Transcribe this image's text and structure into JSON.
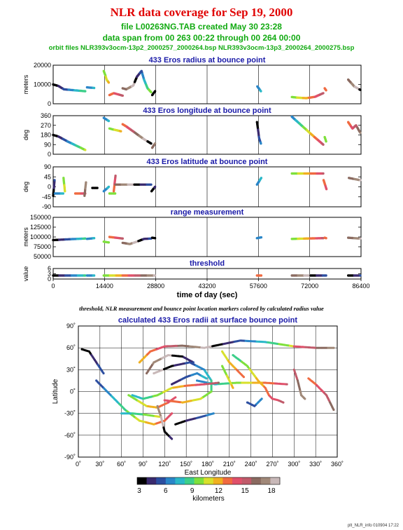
{
  "header": {
    "title": "NLR data coverage for Sep 19, 2000",
    "file_line": "file L00263NG.TAB created May 30 23:28",
    "span_line": "data span from 00 263 00:22 through 00 264 00:00",
    "orbit_line": "orbit files NLR393v3ocm-13p2_2000257_2000264.bsp NLR393v3ocm-13p3_2000264_2000275.bsp"
  },
  "caption": "threshold, NLR measurement and bounce point location markers colored by calculated radius value",
  "footer": "plt_NLR_info 010904 17:22",
  "colors": {
    "panel_title": "#1a1aa8",
    "title": "#e00000",
    "subtitle": "#11aa11",
    "colorbar": [
      "#000000",
      "#3a2a6e",
      "#2c4ea0",
      "#2a86c8",
      "#2bb8c8",
      "#3ccf8a",
      "#7ee03c",
      "#d8e02c",
      "#f0b020",
      "#f06a40",
      "#e0506a",
      "#c05a6a",
      "#8a6a60",
      "#a08878",
      "#c8b8b8"
    ]
  },
  "chart_data": [
    {
      "type": "scatter",
      "title": "433 Eros radius at bounce point",
      "ylabel": "meters",
      "ylim": [
        0,
        20000
      ],
      "yticks": [
        "0",
        "10000",
        "20000"
      ],
      "xlim": [
        0,
        86400
      ],
      "segments": [
        {
          "x": [
            0,
            1500,
            3000,
            6000,
            9000
          ],
          "y": [
            10000,
            9200,
            7500,
            7000,
            6500
          ]
        },
        {
          "x": [
            9500,
            11500
          ],
          "y": [
            8500,
            8200
          ]
        },
        {
          "x": [
            14200,
            14600,
            15000,
            15600
          ],
          "y": [
            17000,
            15000,
            12500,
            11000
          ]
        },
        {
          "x": [
            15800,
            17000,
            18000,
            19500
          ],
          "y": [
            4500,
            5500,
            5000,
            4200
          ]
        },
        {
          "x": [
            19500,
            20500,
            22500,
            23500,
            24800,
            25500,
            26500,
            27500
          ],
          "y": [
            8000,
            7500,
            9500,
            14000,
            17000,
            12500,
            8000,
            6000
          ]
        },
        {
          "x": [
            27800,
            28600
          ],
          "y": [
            4500,
            6500
          ]
        },
        {
          "x": [
            57300,
            57700,
            58300
          ],
          "y": [
            9000,
            8000,
            6500
          ]
        },
        {
          "x": [
            67000,
            68500,
            71000,
            73500,
            75800
          ],
          "y": [
            3500,
            3200,
            2900,
            3600,
            5500
          ]
        },
        {
          "x": [
            76200,
            76600
          ],
          "y": [
            8000,
            7000
          ]
        },
        {
          "x": [
            82800,
            84500,
            86200
          ],
          "y": [
            12500,
            9000,
            7200
          ]
        }
      ]
    },
    {
      "type": "scatter",
      "title": "433 Eros longitude at bounce point",
      "ylabel": "deg",
      "ylim": [
        0,
        360
      ],
      "yticks": [
        "0",
        "90",
        "180",
        "270",
        "360"
      ],
      "xlim": [
        0,
        86400
      ],
      "segments": [
        {
          "x": [
            0,
            1500,
            4000,
            6500,
            9000
          ],
          "y": [
            180,
            165,
            120,
            80,
            40
          ]
        },
        {
          "x": [
            14200,
            15600
          ],
          "y": [
            340,
            310
          ]
        },
        {
          "x": [
            15800,
            17000,
            19000
          ],
          "y": [
            240,
            230,
            215
          ]
        },
        {
          "x": [
            19500,
            20500,
            23000,
            25500,
            27500
          ],
          "y": [
            280,
            260,
            200,
            140,
            100
          ]
        },
        {
          "x": [
            27800,
            28600
          ],
          "y": [
            60,
            100
          ]
        },
        {
          "x": [
            57200,
            57500,
            57800,
            58300
          ],
          "y": [
            300,
            230,
            150,
            100
          ]
        },
        {
          "x": [
            67000,
            70000,
            73000,
            75800
          ],
          "y": [
            350,
            260,
            170,
            90
          ]
        },
        {
          "x": [
            76200,
            76600
          ],
          "y": [
            160,
            120
          ]
        },
        {
          "x": [
            82800,
            84000,
            85000,
            86200
          ],
          "y": [
            300,
            240,
            270,
            200
          ]
        }
      ]
    },
    {
      "type": "scatter",
      "title": "433 Eros latitude at bounce point",
      "ylabel": "deg",
      "ylim": [
        -90,
        90
      ],
      "yticks": [
        "-90",
        "-45",
        "0",
        "45",
        "90"
      ],
      "xlim": [
        0,
        86400
      ],
      "segments": [
        {
          "x": [
            0,
            400
          ],
          "y": [
            -40,
            30
          ]
        },
        {
          "x": [
            500,
            2800
          ],
          "y": [
            -30,
            -30
          ]
        },
        {
          "x": [
            2900,
            3300
          ],
          "y": [
            40,
            -20
          ]
        },
        {
          "x": [
            6200,
            9000
          ],
          "y": [
            -30,
            -30
          ]
        },
        {
          "x": [
            8800,
            9200
          ],
          "y": [
            -40,
            20
          ]
        },
        {
          "x": [
            11000,
            12400
          ],
          "y": [
            -5,
            -5
          ]
        },
        {
          "x": [
            14200,
            15600
          ],
          "y": [
            -20,
            0
          ]
        },
        {
          "x": [
            15800,
            17400
          ],
          "y": [
            -30,
            -30
          ]
        },
        {
          "x": [
            17000,
            17500
          ],
          "y": [
            -20,
            50
          ]
        },
        {
          "x": [
            17500,
            27500
          ],
          "y": [
            10,
            10
          ]
        },
        {
          "x": [
            27600,
            28600
          ],
          "y": [
            -20,
            0
          ]
        },
        {
          "x": [
            57200,
            58400
          ],
          "y": [
            10,
            40
          ]
        },
        {
          "x": [
            67000,
            75800
          ],
          "y": [
            60,
            60
          ]
        },
        {
          "x": [
            75900,
            76700
          ],
          "y": [
            30,
            -10
          ]
        },
        {
          "x": [
            83000,
            86200
          ],
          "y": [
            40,
            30
          ]
        }
      ]
    },
    {
      "type": "scatter",
      "title": "range measurement",
      "ylabel": "meters",
      "ylim": [
        50000,
        150000
      ],
      "yticks": [
        "50000",
        "75000",
        "100000",
        "125000",
        "150000"
      ],
      "xlim": [
        0,
        86400
      ],
      "segments": [
        {
          "x": [
            0,
            4000,
            9000
          ],
          "y": [
            92000,
            94000,
            96000
          ]
        },
        {
          "x": [
            9500,
            11500
          ],
          "y": [
            95000,
            97000
          ]
        },
        {
          "x": [
            14200,
            15600
          ],
          "y": [
            88000,
            86000
          ]
        },
        {
          "x": [
            15800,
            19500
          ],
          "y": [
            100000,
            96000
          ]
        },
        {
          "x": [
            19500,
            21500,
            23500,
            25500,
            27500
          ],
          "y": [
            85000,
            82000,
            88000,
            95000,
            96000
          ]
        },
        {
          "x": [
            27800,
            28600
          ],
          "y": [
            98000,
            97000
          ]
        },
        {
          "x": [
            57200,
            58400
          ],
          "y": [
            97000,
            99000
          ]
        },
        {
          "x": [
            67000,
            71000,
            75800
          ],
          "y": [
            95000,
            96000,
            97000
          ]
        },
        {
          "x": [
            76200,
            76600
          ],
          "y": [
            98000,
            97000
          ]
        },
        {
          "x": [
            82800,
            86200
          ],
          "y": [
            98000,
            96000
          ]
        }
      ]
    },
    {
      "type": "scatter",
      "title": "threshold",
      "ylabel": "value",
      "ylim": [
        0,
        6
      ],
      "yticks": [
        "0",
        "3",
        "6"
      ],
      "xlim": [
        0,
        86400
      ],
      "xticks": [
        "0",
        "14400",
        "28800",
        "43200",
        "57600",
        "72000",
        "86400"
      ],
      "xlabel": "time of day (sec)",
      "segments": [
        {
          "x": [
            0,
            9000
          ],
          "y": [
            2,
            2
          ]
        },
        {
          "x": [
            9500,
            11500
          ],
          "y": [
            2,
            2
          ]
        },
        {
          "x": [
            14200,
            28600
          ],
          "y": [
            2,
            2
          ]
        },
        {
          "x": [
            57200,
            58400
          ],
          "y": [
            2,
            2
          ]
        },
        {
          "x": [
            67000,
            76600
          ],
          "y": [
            2,
            2
          ]
        },
        {
          "x": [
            82800,
            86200
          ],
          "y": [
            2,
            2
          ]
        }
      ]
    },
    {
      "type": "scatter",
      "title": "calculated 433 Eros radii at surface bounce point",
      "xlabel": "East Longitude",
      "ylabel": "Latitude",
      "xlim": [
        0,
        360
      ],
      "ylim": [
        -90,
        90
      ],
      "xticks": [
        "0˚",
        "30˚",
        "60˚",
        "90˚",
        "120˚",
        "150˚",
        "180˚",
        "210˚",
        "240˚",
        "270˚",
        "300˚",
        "330˚",
        "360˚"
      ],
      "yticks": [
        "-90˚",
        "-60˚",
        "-30˚",
        "0˚",
        "30˚",
        "60˚",
        "90˚"
      ],
      "colorbar": {
        "ticks": [
          "3",
          "6",
          "9",
          "12",
          "15",
          "18"
        ],
        "label": "kilometers"
      },
      "tracks": [
        {
          "lon": [
            5,
            15,
            25,
            35
          ],
          "lat": [
            58,
            55,
            40,
            25
          ]
        },
        {
          "lon": [
            25,
            45,
            65,
            85,
            105,
            120,
            130
          ],
          "lat": [
            15,
            -5,
            -25,
            -40,
            -45,
            -40,
            -30
          ]
        },
        {
          "lon": [
            60,
            75,
            95,
            115
          ],
          "lat": [
            -30,
            -30,
            -32,
            -35
          ]
        },
        {
          "lon": [
            70,
            95,
            110,
            125,
            135
          ],
          "lat": [
            -5,
            -20,
            -22,
            -15,
            -8
          ]
        },
        {
          "lon": [
            85,
            100,
            120,
            145,
            175,
            200,
            225,
            260,
            300
          ],
          "lat": [
            40,
            55,
            62,
            63,
            60,
            65,
            70,
            68,
            62
          ]
        },
        {
          "lon": [
            300,
            330,
            355
          ],
          "lat": [
            62,
            60,
            60
          ]
        },
        {
          "lon": [
            95,
            105,
            125,
            145,
            160
          ],
          "lat": [
            25,
            40,
            50,
            48,
            40
          ]
        },
        {
          "lon": [
            105,
            130,
            155,
            175,
            185,
            185,
            170,
            145,
            120
          ],
          "lat": [
            25,
            35,
            40,
            30,
            15,
            0,
            -10,
            -15,
            -12
          ]
        },
        {
          "lon": [
            130,
            150,
            165,
            178
          ],
          "lat": [
            10,
            20,
            25,
            18
          ]
        },
        {
          "lon": [
            165,
            190,
            220,
            260,
            290
          ],
          "lat": [
            15,
            10,
            12,
            12,
            10
          ]
        },
        {
          "lon": [
            215,
            235,
            250,
            260,
            265,
            270,
            278,
            285
          ],
          "lat": [
            50,
            35,
            15,
            5,
            -5,
            -10,
            -12,
            -15
          ]
        },
        {
          "lon": [
            200,
            210,
            220,
            230
          ],
          "lat": [
            55,
            40,
            30,
            20
          ]
        },
        {
          "lon": [
            320,
            330,
            345,
            355
          ],
          "lat": [
            18,
            10,
            -5,
            -25
          ]
        },
        {
          "lon": [
            300,
            305,
            310,
            315
          ],
          "lat": [
            30,
            15,
            -5,
            -10
          ]
        },
        {
          "lon": [
            110,
            115,
            120,
            130
          ],
          "lat": [
            -20,
            -35,
            -55,
            -65
          ]
        },
        {
          "lon": [
            135,
            150,
            170,
            188
          ],
          "lat": [
            -45,
            -40,
            -35,
            -30
          ]
        },
        {
          "lon": [
            235,
            245,
            255
          ],
          "lat": [
            -15,
            -20,
            -10
          ]
        },
        {
          "lon": [
            75,
            90,
            110,
            130,
            150,
            175,
            195
          ],
          "lat": [
            -5,
            -10,
            -5,
            5,
            8,
            10,
            12
          ]
        },
        {
          "lon": [
            200,
            205,
            210,
            215
          ],
          "lat": [
            35,
            25,
            15,
            5
          ]
        }
      ]
    }
  ]
}
